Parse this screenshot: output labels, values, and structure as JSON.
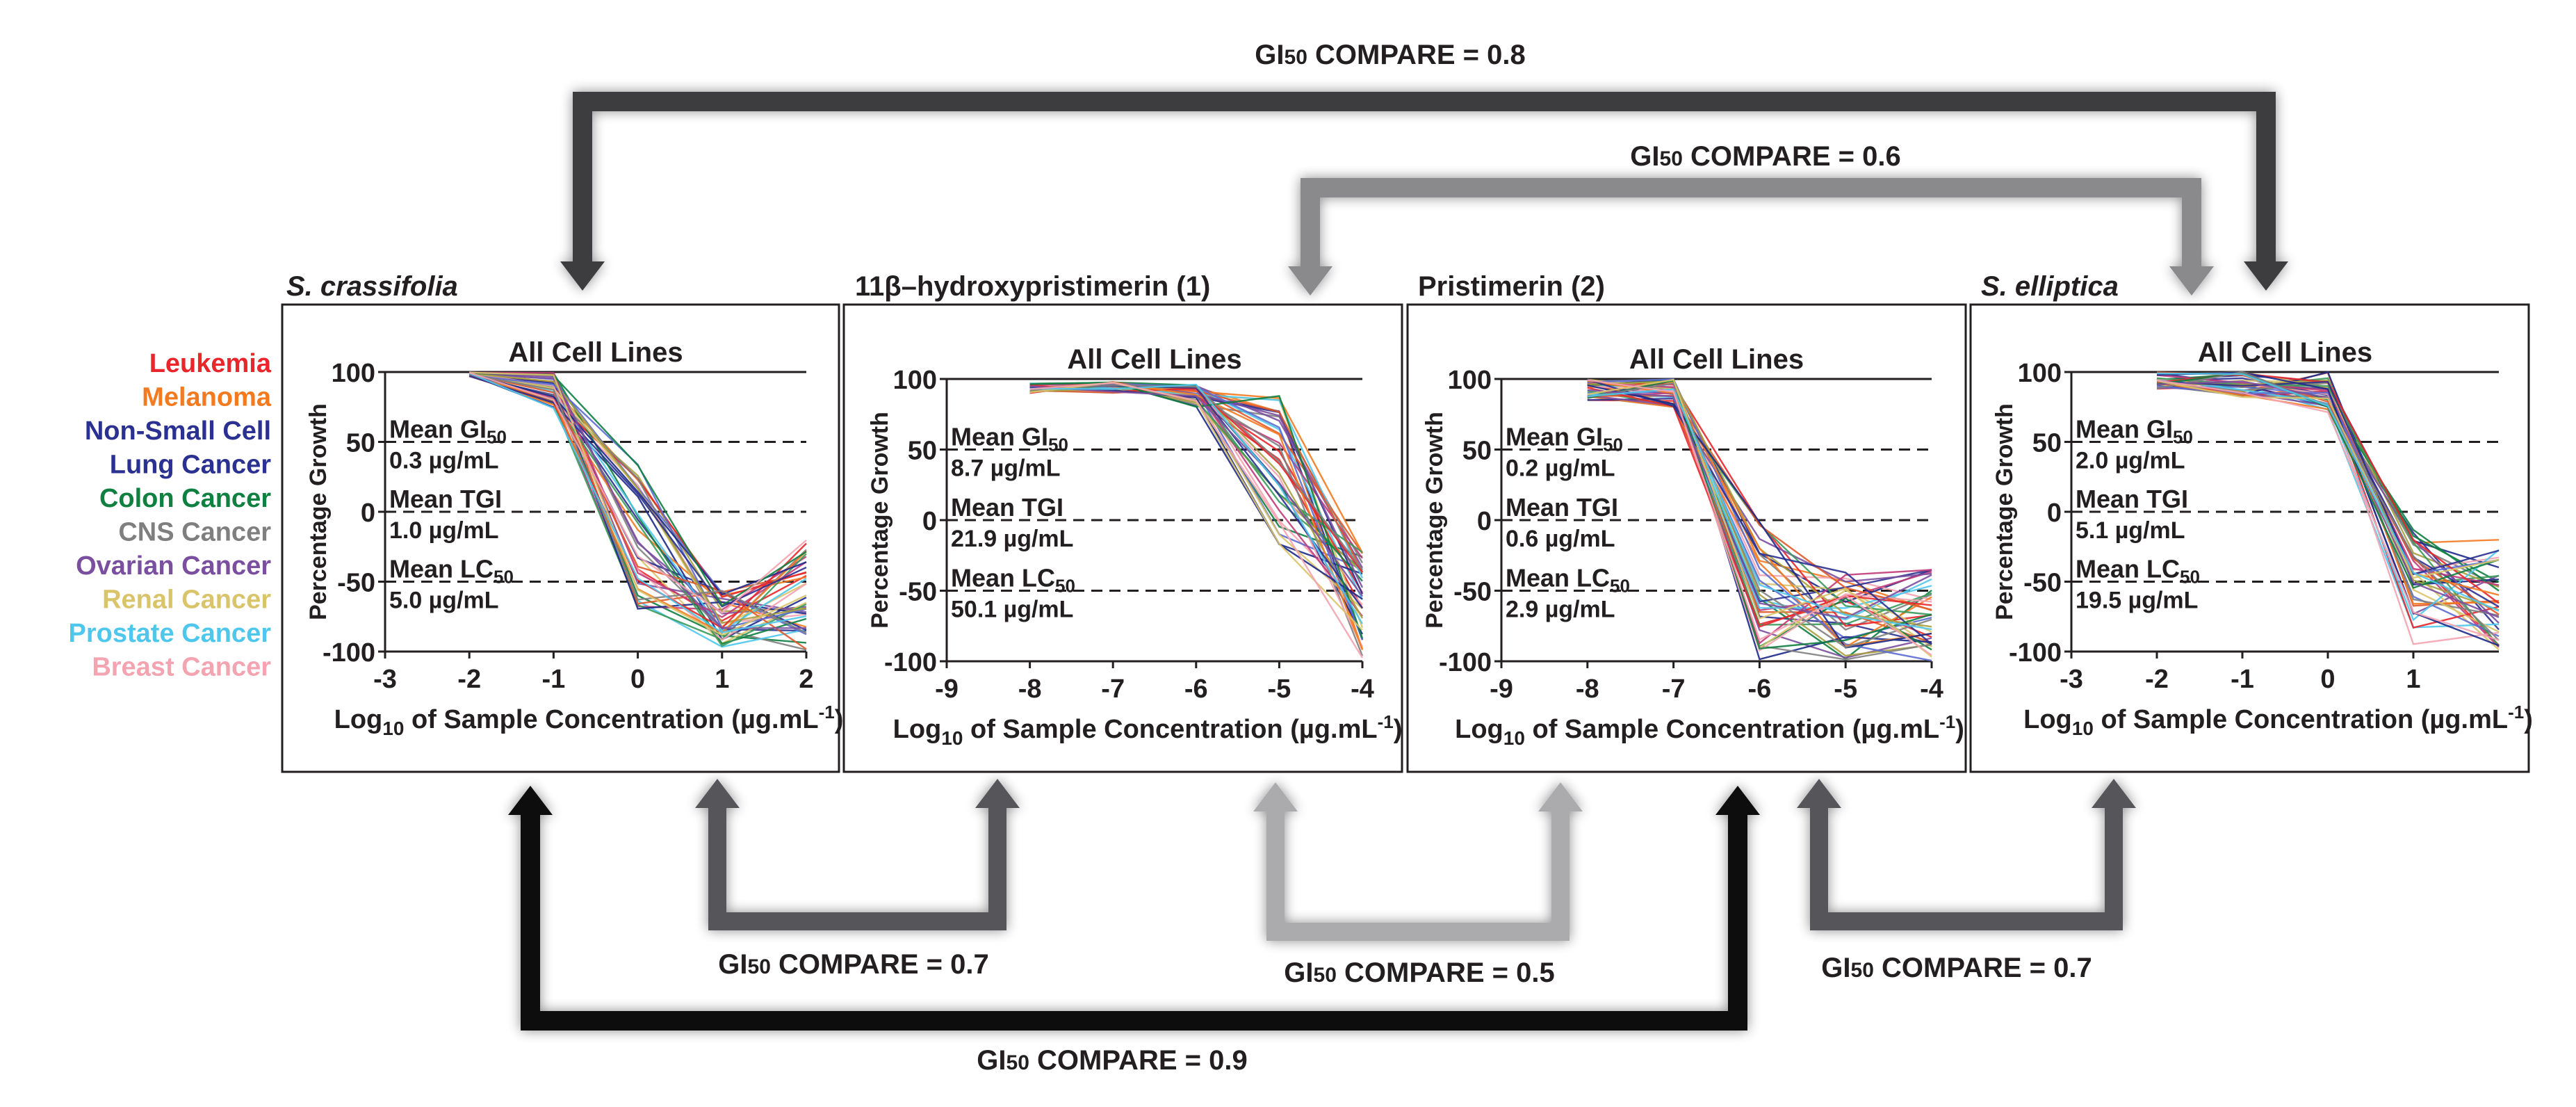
{
  "legend": {
    "items": [
      {
        "label": "Leukemia",
        "color": "#e8262b"
      },
      {
        "label": "Melanoma",
        "color": "#f47a20"
      },
      {
        "label": "Non-Small Cell",
        "color": "#2b3190"
      },
      {
        "label": "Lung Cancer",
        "color": "#2b3190"
      },
      {
        "label": "Colon Cancer",
        "color": "#0f8040"
      },
      {
        "label": "CNS Cancer",
        "color": "#7f7f7f"
      },
      {
        "label": "Ovarian Cancer",
        "color": "#7b4fa0"
      },
      {
        "label": "Renal Cancer",
        "color": "#d9c46a"
      },
      {
        "label": "Prostate Cancer",
        "color": "#4fc7ec"
      },
      {
        "label": "Breast Cancer",
        "color": "#f4a3b0"
      }
    ]
  },
  "compare": {
    "label_prefix": "GI",
    "label_sub": "50",
    "label_suffix": " COMPARE = ",
    "top_outer": "0.8",
    "top_inner": "0.6",
    "bottom_left_small": "0.7",
    "bottom_middle": "0.5",
    "bottom_right_small": "0.7",
    "bottom_outer": "0.9"
  },
  "chart_data": [
    {
      "type": "line",
      "panel_label": "S. crassifolia",
      "title": "All Cell Lines",
      "xlabel": "Log10 of Sample Concentration (µg.mL-1)",
      "xlabel_main": "Log",
      "xlabel_sub": "10",
      "xlabel_rest": " of Sample Concentration (µg.mL",
      "xlabel_sup": "-1",
      "xlabel_end": ")",
      "ylabel": "Percentage Growth",
      "xlim": [
        -3,
        2
      ],
      "ylim": [
        -100,
        100
      ],
      "x_ticks": [
        "-3",
        "-2",
        "-1",
        "0",
        "1",
        "2"
      ],
      "y_ticks": [
        "100",
        "50",
        "0",
        "-50",
        "-100"
      ],
      "x_values": [
        -2,
        -1,
        0,
        1,
        2
      ],
      "series_start": [
        97,
        100
      ],
      "series_mid": [
        72,
        100
      ],
      "series_c": [
        -75,
        40
      ],
      "series_d": [
        -100,
        -55
      ],
      "series_e": [
        -100,
        -20
      ],
      "annotations": [
        {
          "name": "Mean GI50",
          "value": "0.3 µg/mL",
          "label": "Mean GI",
          "sub": "50"
        },
        {
          "name": "Mean TGI",
          "value": "1.0 µg/mL",
          "label": "Mean TGI",
          "sub": ""
        },
        {
          "name": "Mean LC50",
          "value": "5.0 µg/mL",
          "label": "Mean LC",
          "sub": "50"
        }
      ]
    },
    {
      "type": "line",
      "panel_label": "11β–hydroxypristimerin (1)",
      "title": "All Cell Lines",
      "xlabel": "Log10 of Sample Concentration (µg.mL-1)",
      "xlabel_main": "Log",
      "xlabel_sub": "10",
      "xlabel_rest": " of Sample Concentration (µg.mL",
      "xlabel_sup": "-1",
      "xlabel_end": ")",
      "ylabel": "Percentage Growth",
      "xlim": [
        -9,
        -4
      ],
      "ylim": [
        -100,
        100
      ],
      "x_ticks": [
        "-9",
        "-8",
        "-7",
        "-6",
        "-5",
        "-4"
      ],
      "y_ticks": [
        "100",
        "50",
        "0",
        "-50",
        "-100"
      ],
      "x_values": [
        -8,
        -7,
        -6,
        -5,
        -4
      ],
      "series_start": [
        90,
        97
      ],
      "series_mid": [
        90,
        98
      ],
      "series_c": [
        80,
        98
      ],
      "series_d": [
        -20,
        90
      ],
      "series_e": [
        -100,
        -20
      ],
      "annotations": [
        {
          "name": "Mean GI50",
          "value": "8.7 µg/mL",
          "label": "Mean GI",
          "sub": "50"
        },
        {
          "name": "Mean TGI",
          "value": "21.9 µg/mL",
          "label": "Mean TGI",
          "sub": ""
        },
        {
          "name": "Mean LC50",
          "value": "50.1 µg/mL",
          "label": "Mean LC",
          "sub": "50"
        }
      ]
    },
    {
      "type": "line",
      "panel_label": "Pristimerin (2)",
      "title": "All Cell Lines",
      "xlabel": "Log10 of Sample Concentration (µg.mL-1)",
      "xlabel_main": "Log",
      "xlabel_sub": "10",
      "xlabel_rest": " of Sample Concentration (µg.mL",
      "xlabel_sup": "-1",
      "xlabel_end": ")",
      "ylabel": "Percentage Growth",
      "xlim": [
        -9,
        -4
      ],
      "ylim": [
        -100,
        100
      ],
      "x_ticks": [
        "-9",
        "-8",
        "-7",
        "-6",
        "-5",
        "-4"
      ],
      "y_ticks": [
        "100",
        "50",
        "0",
        "-50",
        "-100"
      ],
      "x_values": [
        -8,
        -7,
        -6,
        -5,
        -4
      ],
      "series_start": [
        85,
        100
      ],
      "series_mid": [
        80,
        100
      ],
      "series_c": [
        -100,
        0
      ],
      "series_d": [
        -100,
        -35
      ],
      "series_e": [
        -100,
        -35
      ],
      "annotations": [
        {
          "name": "Mean GI50",
          "value": "0.2 µg/mL",
          "label": "Mean GI",
          "sub": "50"
        },
        {
          "name": "Mean TGI",
          "value": "0.6 µg/mL",
          "label": "Mean TGI",
          "sub": ""
        },
        {
          "name": "Mean LC50",
          "value": "2.9 µg/mL",
          "label": "Mean LC",
          "sub": "50"
        }
      ]
    },
    {
      "type": "line",
      "panel_label": "S. elliptica",
      "title": "All Cell Lines",
      "xlabel": "Log10 of Sample Concentration (µg.mL-1)",
      "xlabel_main": "Log",
      "xlabel_sub": "10",
      "xlabel_rest": " of Sample Concentration (µg.mL",
      "xlabel_sup": "-1",
      "xlabel_end": ")",
      "ylabel": "Percentage Growth",
      "xlim": [
        -3,
        2
      ],
      "ylim": [
        -100,
        100
      ],
      "x_ticks": [
        "-3",
        "-2",
        "-1",
        "0",
        "1"
      ],
      "y_ticks": [
        "100",
        "50",
        "0",
        "-50",
        "-100"
      ],
      "x_values": [
        -2,
        -1,
        0,
        1,
        2
      ],
      "series_start": [
        88,
        100
      ],
      "series_mid": [
        82,
        100
      ],
      "series_c": [
        70,
        100
      ],
      "series_d": [
        -95,
        -10
      ],
      "series_e": [
        -100,
        -20
      ],
      "annotations": [
        {
          "name": "Mean GI50",
          "value": "2.0 µg/mL",
          "label": "Mean GI",
          "sub": "50"
        },
        {
          "name": "Mean TGI",
          "value": "5.1 µg/mL",
          "label": "Mean TGI",
          "sub": ""
        },
        {
          "name": "Mean LC50",
          "value": "19.5 µg/mL",
          "label": "Mean LC",
          "sub": "50"
        }
      ]
    }
  ]
}
